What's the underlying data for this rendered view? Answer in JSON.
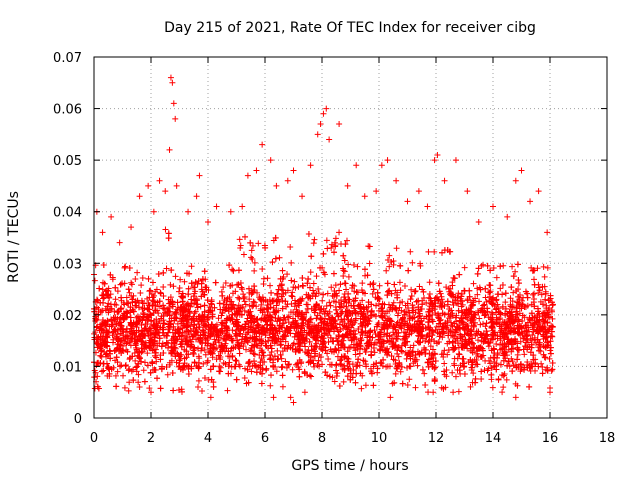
{
  "chart_data": {
    "type": "scatter",
    "title": "Day 215 of 2021, Rate Of TEC Index for receiver cibg",
    "xlabel": "GPS time / hours",
    "ylabel": "ROTI / TECUs",
    "xlim": [
      0,
      18
    ],
    "ylim": [
      0,
      0.07
    ],
    "x_ticks": [
      0,
      2,
      4,
      6,
      8,
      10,
      12,
      14,
      16,
      18
    ],
    "y_ticks": [
      0,
      0.01,
      0.02,
      0.03,
      0.04,
      0.05,
      0.06,
      0.07
    ],
    "x_tick_labels": [
      "0",
      "2",
      "4",
      "6",
      "8",
      "10",
      "12",
      "14",
      "16",
      "18"
    ],
    "y_tick_labels": [
      "0",
      "0.01",
      "0.02",
      "0.03",
      "0.04",
      "0.05",
      "0.06",
      "0.07"
    ],
    "grid": true,
    "marker": "plus",
    "color": "#ff0000",
    "series": [
      {
        "name": "ROTI",
        "x_range": [
          0,
          16.1
        ],
        "bulk_range": [
          0.008,
          0.027
        ],
        "outliers": [
          [
            0.1,
            0.04
          ],
          [
            0.3,
            0.036
          ],
          [
            0.6,
            0.039
          ],
          [
            0.9,
            0.034
          ],
          [
            1.3,
            0.037
          ],
          [
            1.6,
            0.043
          ],
          [
            1.9,
            0.045
          ],
          [
            2.1,
            0.04
          ],
          [
            2.3,
            0.046
          ],
          [
            2.5,
            0.044
          ],
          [
            2.65,
            0.052
          ],
          [
            2.7,
            0.066
          ],
          [
            2.75,
            0.065
          ],
          [
            2.8,
            0.061
          ],
          [
            2.85,
            0.058
          ],
          [
            2.9,
            0.045
          ],
          [
            3.3,
            0.04
          ],
          [
            3.6,
            0.043
          ],
          [
            3.7,
            0.047
          ],
          [
            4.0,
            0.038
          ],
          [
            4.3,
            0.041
          ],
          [
            4.8,
            0.04
          ],
          [
            5.2,
            0.041
          ],
          [
            5.4,
            0.047
          ],
          [
            5.7,
            0.048
          ],
          [
            5.9,
            0.053
          ],
          [
            6.2,
            0.05
          ],
          [
            6.4,
            0.045
          ],
          [
            6.8,
            0.046
          ],
          [
            7.0,
            0.048
          ],
          [
            7.3,
            0.043
          ],
          [
            7.6,
            0.049
          ],
          [
            7.85,
            0.055
          ],
          [
            7.95,
            0.057
          ],
          [
            8.05,
            0.059
          ],
          [
            8.15,
            0.06
          ],
          [
            8.25,
            0.054
          ],
          [
            8.6,
            0.057
          ],
          [
            8.9,
            0.045
          ],
          [
            9.2,
            0.049
          ],
          [
            9.5,
            0.043
          ],
          [
            9.9,
            0.044
          ],
          [
            10.1,
            0.049
          ],
          [
            10.3,
            0.05
          ],
          [
            10.6,
            0.046
          ],
          [
            11.0,
            0.042
          ],
          [
            11.4,
            0.044
          ],
          [
            11.7,
            0.041
          ],
          [
            11.95,
            0.05
          ],
          [
            12.05,
            0.051
          ],
          [
            12.3,
            0.046
          ],
          [
            12.7,
            0.05
          ],
          [
            13.1,
            0.044
          ],
          [
            13.5,
            0.038
          ],
          [
            14.0,
            0.041
          ],
          [
            14.5,
            0.039
          ],
          [
            14.8,
            0.046
          ],
          [
            15.0,
            0.048
          ],
          [
            15.3,
            0.042
          ],
          [
            15.6,
            0.044
          ],
          [
            15.9,
            0.036
          ],
          [
            1.6,
            0.006
          ],
          [
            2.0,
            0.005
          ],
          [
            4.1,
            0.004
          ],
          [
            6.3,
            0.004
          ],
          [
            6.9,
            0.004
          ],
          [
            7.0,
            0.003
          ],
          [
            7.4,
            0.005
          ],
          [
            10.4,
            0.004
          ],
          [
            11.9,
            0.005
          ],
          [
            12.6,
            0.005
          ],
          [
            14.8,
            0.004
          ],
          [
            16.0,
            0.005
          ]
        ]
      }
    ]
  }
}
